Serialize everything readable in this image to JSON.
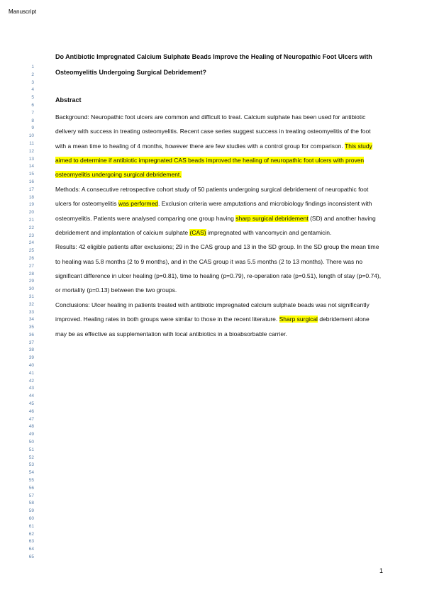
{
  "header_label": "Manuscript",
  "title": "Do Antibiotic Impregnated Calcium Sulphate Beads Improve the Healing of Neuropathic Foot Ulcers with Osteomyelitis Undergoing Surgical Debridement?",
  "abstract_head": "Abstract",
  "background": {
    "pre": "Background:  Neuropathic foot ulcers are common and difficult to treat.  Calcium sulphate has been used for antibiotic delivery with success in treating osteomyelitis.  Recent case series suggest success in treating osteomyelitis of the foot with a mean time to healing of 4 months, however there are few studies with a control group for comparison.  ",
    "hl": "This study aimed to determine if antibiotic impregnated CAS beads improved the healing of neuropathic foot ulcers with proven osteomyelitis undergoing surgical debridement."
  },
  "methods": {
    "p1": "Methods:  A consecutive retrospective cohort study of 50 patients undergoing surgical debridement of neuropathic foot ulcers for osteomyelitis ",
    "hl1": "was performed",
    "p2": ".  Exclusion criteria were amputations and microbiology findings inconsistent with osteomyelitis.  Patients were analysed comparing one group having ",
    "hl2": "sharp surgical debridement",
    "p3": " (SD) and another having debridement and implantation of calcium sulphate ",
    "hl3": "(CAS)",
    "p4": " impregnated with vancomycin and gentamicin."
  },
  "results": "Results: 42 eligible patients after exclusions; 29 in the CAS group and 13 in the SD group.  In the SD group the mean time to healing was 5.8 months (2 to 9 months), and in the CAS group it was 5.5 months (2 to 13 months).  There was no significant difference in ulcer healing (p=0.81), time to healing (p=0.79), re-operation rate (p=0.51), length of stay (p=0.74), or mortality (p=0.13) between the two groups.",
  "conclusions": {
    "p1": "Conclusions:  Ulcer healing in patients treated with antibiotic impregnated calcium sulphate beads was not significantly improved.  Healing rates in both groups were similar to those in the recent literature. ",
    "hl": "Sharp surgical",
    "p2": " debridement alone may be as effective as supplementation with local antibiotics in a bioabsorbable carrier."
  },
  "page_number": "1",
  "line_number_start": 1,
  "line_number_end": 65,
  "colors": {
    "highlight": "#ffff00",
    "line_num": "#5b7fa8",
    "text": "#111111",
    "bg": "#ffffff"
  }
}
